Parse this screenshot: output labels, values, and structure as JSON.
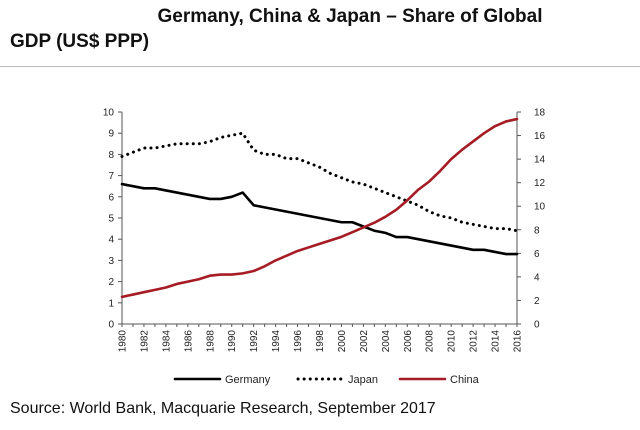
{
  "header": {
    "title_line1": "Germany, China & Japan – Share of Global",
    "title_line2": "GDP (US$ PPP)"
  },
  "source": "Source: World Bank, Macquarie Research, September 2017",
  "chart_data": {
    "type": "line",
    "title": "Germany, China & Japan – Share of Global GDP (US$ PPP)",
    "x": [
      1980,
      1981,
      1982,
      1983,
      1984,
      1985,
      1986,
      1987,
      1988,
      1989,
      1990,
      1991,
      1992,
      1993,
      1994,
      1995,
      1996,
      1997,
      1998,
      1999,
      2000,
      2001,
      2002,
      2003,
      2004,
      2005,
      2006,
      2007,
      2008,
      2009,
      2010,
      2011,
      2012,
      2013,
      2014,
      2015,
      2016
    ],
    "x_tick_labels": [
      "1980",
      "1982",
      "1984",
      "1986",
      "1988",
      "1990",
      "1992",
      "1994",
      "1996",
      "1998",
      "2000",
      "2002",
      "2004",
      "2006",
      "2008",
      "2010",
      "2012",
      "2014",
      "2016"
    ],
    "y_left": {
      "lim": [
        0,
        10
      ],
      "ticks": [
        0,
        1,
        2,
        3,
        4,
        5,
        6,
        7,
        8,
        9,
        10
      ]
    },
    "y_right": {
      "lim": [
        0,
        18
      ],
      "ticks": [
        0,
        2,
        4,
        6,
        8,
        10,
        12,
        14,
        16,
        18
      ]
    },
    "grid": false,
    "legend_position": "bottom",
    "series": [
      {
        "name": "Germany",
        "axis": "left",
        "style": "solid",
        "color": "#000000",
        "values": [
          6.6,
          6.5,
          6.4,
          6.4,
          6.3,
          6.2,
          6.1,
          6.0,
          5.9,
          5.9,
          6.0,
          6.2,
          5.6,
          5.5,
          5.4,
          5.3,
          5.2,
          5.1,
          5.0,
          4.9,
          4.8,
          4.8,
          4.6,
          4.4,
          4.3,
          4.1,
          4.1,
          4.0,
          3.9,
          3.8,
          3.7,
          3.6,
          3.5,
          3.5,
          3.4,
          3.3,
          3.3
        ]
      },
      {
        "name": "Japan",
        "axis": "left",
        "style": "dotted",
        "color": "#000000",
        "values": [
          7.9,
          8.1,
          8.3,
          8.3,
          8.4,
          8.5,
          8.5,
          8.5,
          8.6,
          8.8,
          8.9,
          9.0,
          8.2,
          8.0,
          8.0,
          7.8,
          7.8,
          7.6,
          7.4,
          7.1,
          6.9,
          6.7,
          6.6,
          6.4,
          6.2,
          6.0,
          5.8,
          5.6,
          5.3,
          5.1,
          5.0,
          4.8,
          4.7,
          4.6,
          4.5,
          4.5,
          4.4
        ]
      },
      {
        "name": "China",
        "axis": "right",
        "style": "solid",
        "color": "#a51c24",
        "values": [
          2.3,
          2.5,
          2.7,
          2.9,
          3.1,
          3.4,
          3.6,
          3.8,
          4.1,
          4.2,
          4.2,
          4.3,
          4.5,
          4.9,
          5.4,
          5.8,
          6.2,
          6.5,
          6.8,
          7.1,
          7.4,
          7.8,
          8.2,
          8.6,
          9.1,
          9.7,
          10.5,
          11.4,
          12.1,
          13.0,
          14.0,
          14.8,
          15.5,
          16.2,
          16.8,
          17.2,
          17.4
        ]
      }
    ]
  }
}
